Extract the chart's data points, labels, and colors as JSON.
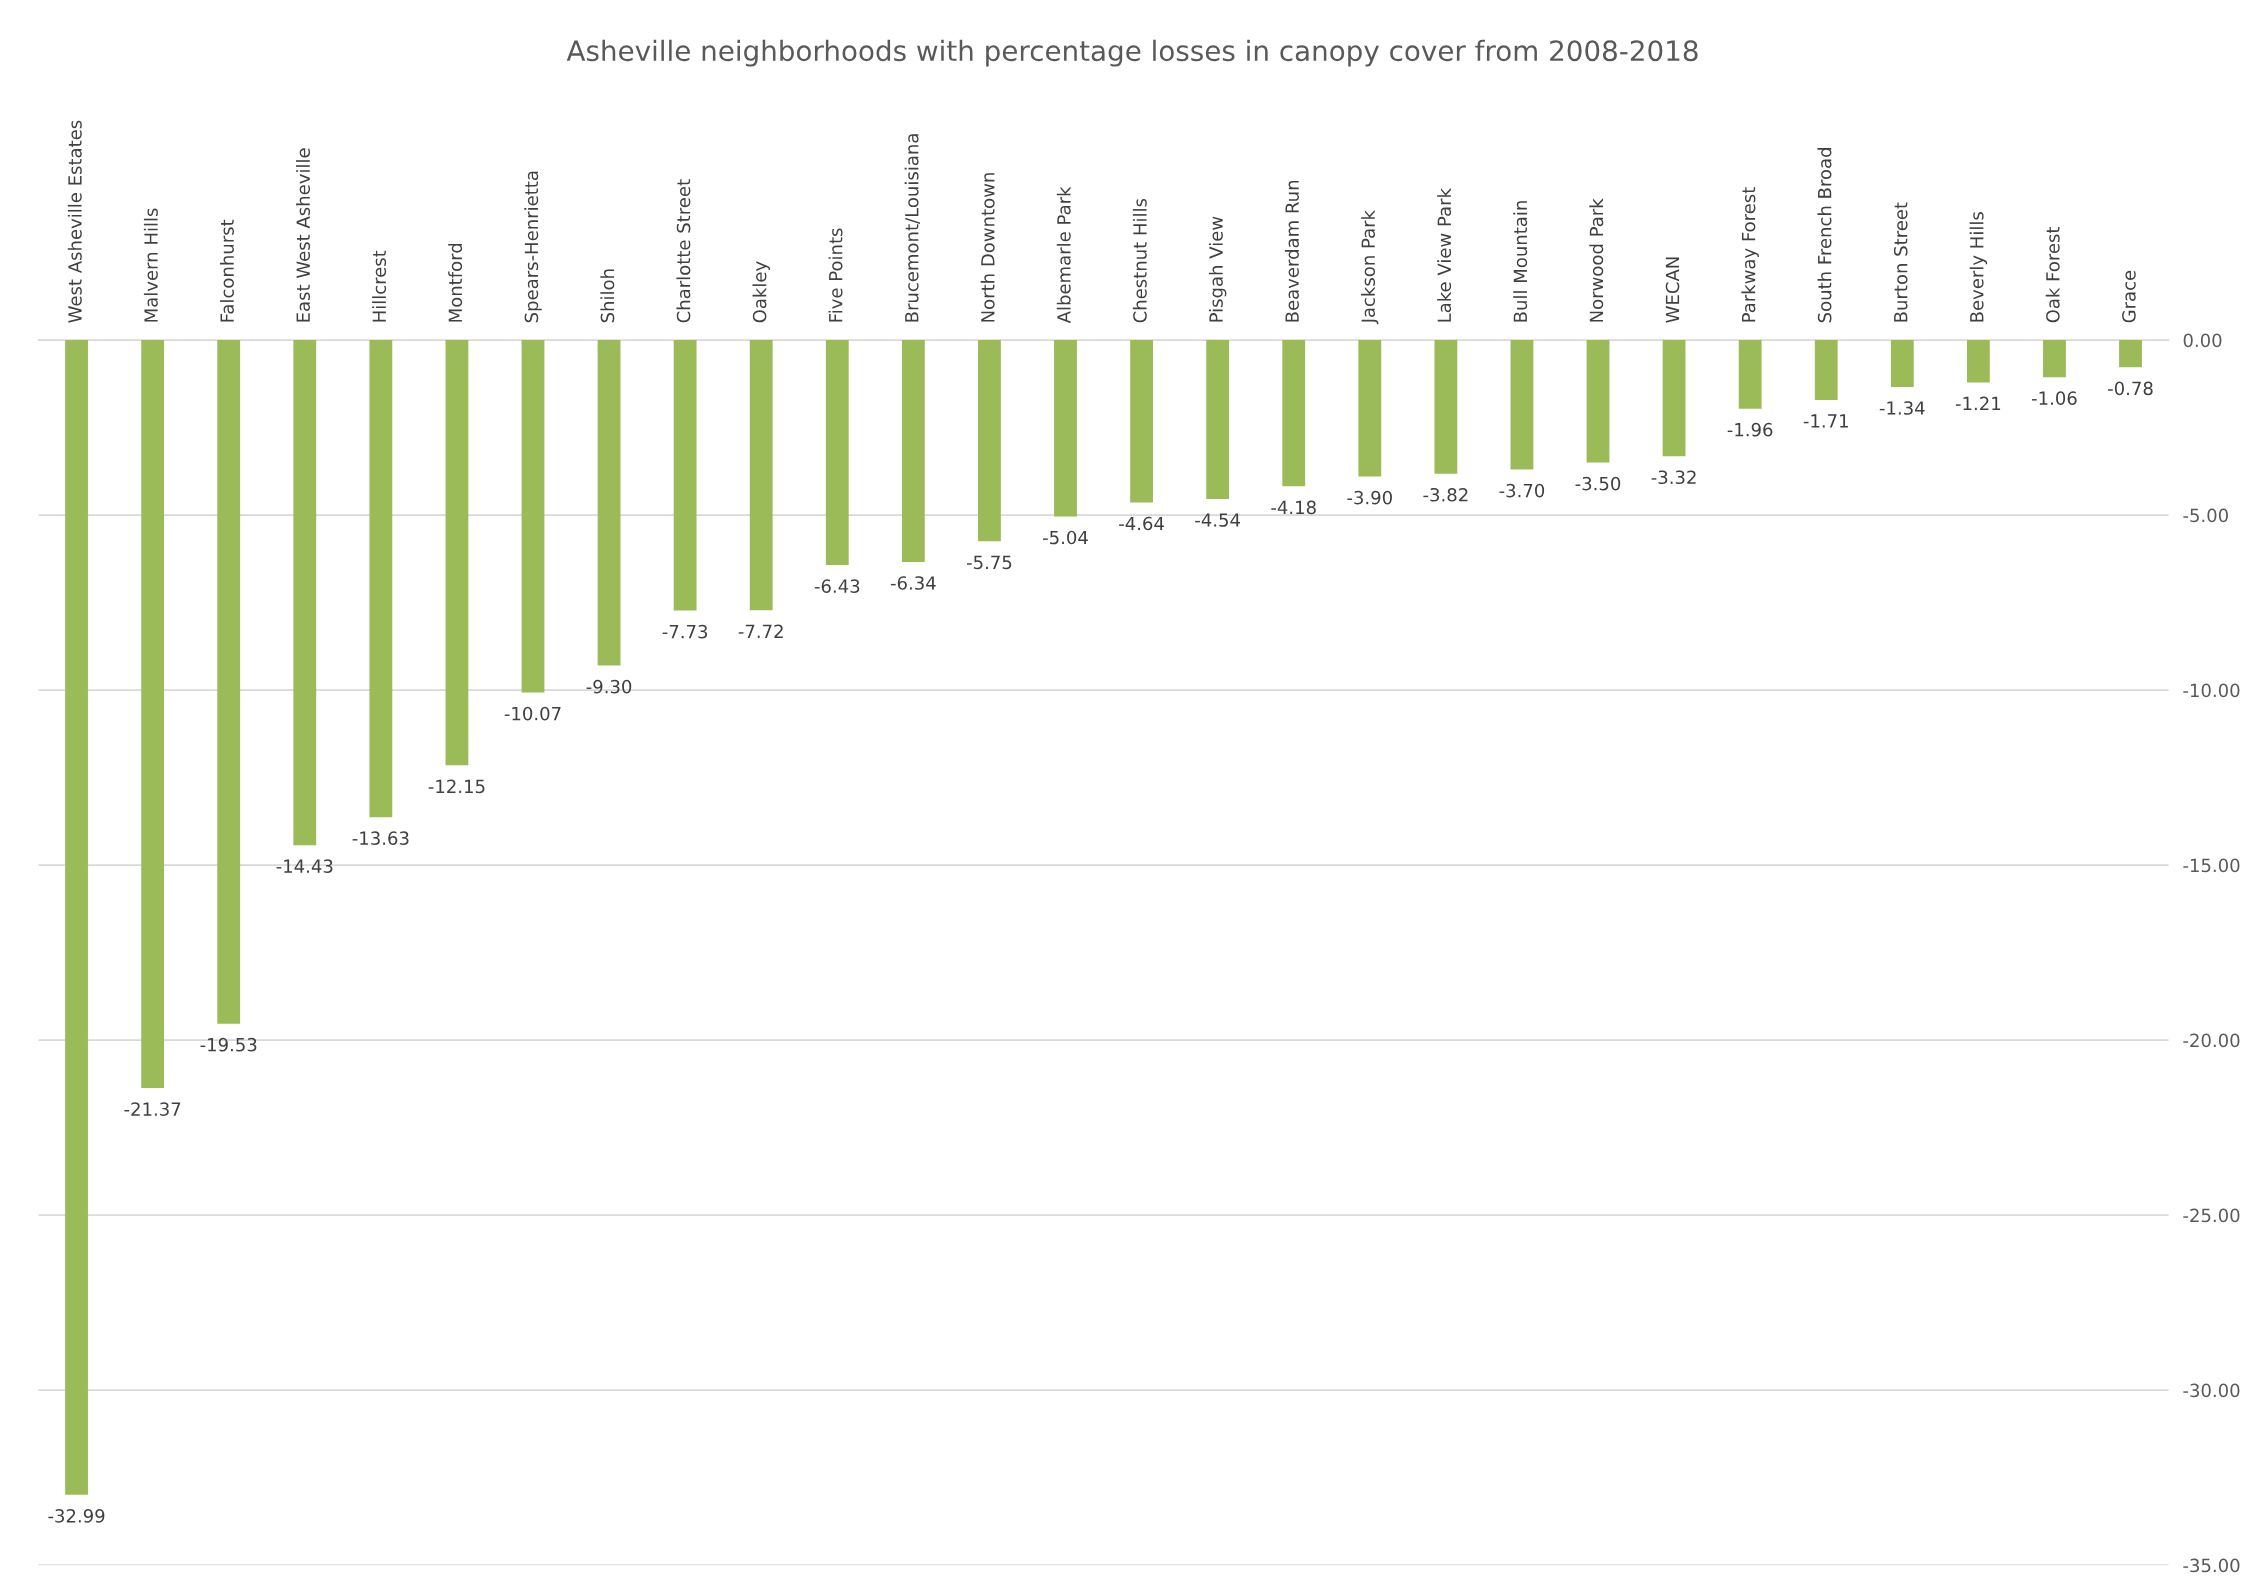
{
  "chart_data": {
    "type": "bar",
    "title": "Asheville neighborhoods with percentage losses in canopy cover from 2008-2018",
    "categories": [
      "West Asheville Estates",
      "Malvern Hills",
      "Falconhurst",
      "East West Asheville",
      "Hillcrest",
      "Montford",
      "Spears-Henrietta",
      "Shiloh",
      "Charlotte Street",
      "Oakley",
      "Five Points",
      "Brucemont/Louisiana",
      "North Downtown",
      "Albemarle Park",
      "Chestnut Hills",
      "Pisgah View",
      "Beaverdam Run",
      "Jackson Park",
      "Lake View Park",
      "Bull Mountain",
      "Norwood Park",
      "WECAN",
      "Parkway Forest",
      "South French Broad",
      "Burton Street",
      "Beverly Hills",
      "Oak Forest",
      "Grace"
    ],
    "values": [
      -32.99,
      -21.37,
      -19.53,
      -14.43,
      -13.63,
      -12.15,
      -10.07,
      -9.3,
      -7.73,
      -7.72,
      -6.43,
      -6.34,
      -5.75,
      -5.04,
      -4.64,
      -4.54,
      -4.18,
      -3.9,
      -3.82,
      -3.7,
      -3.5,
      -3.32,
      -1.96,
      -1.71,
      -1.34,
      -1.21,
      -1.06,
      -0.78
    ],
    "value_labels": [
      "-32.99",
      "-21.37",
      "-19.53",
      "-14.43",
      "-13.63",
      "-12.15",
      "-10.07",
      "-9.30",
      "-7.73",
      "-7.72",
      "-6.43",
      "-6.34",
      "-5.75",
      "-5.04",
      "-4.64",
      "-4.54",
      "-4.18",
      "-3.90",
      "-3.82",
      "-3.70",
      "-3.50",
      "-3.32",
      "-1.96",
      "-1.71",
      "-1.34",
      "-1.21",
      "-1.06",
      "-0.78"
    ],
    "color": "#9bbb59",
    "ylim": [
      -35,
      0
    ],
    "yticks": [
      {
        "value": 0,
        "label": "0.00"
      },
      {
        "value": -5,
        "label": "-5.00"
      },
      {
        "value": -10,
        "label": "-10.00"
      },
      {
        "value": -15,
        "label": "-15.00"
      },
      {
        "value": -20,
        "label": "-20.00"
      },
      {
        "value": -25,
        "label": "-25.00"
      },
      {
        "value": -30,
        "label": "-30.00"
      },
      {
        "value": -35,
        "label": "-35.00"
      }
    ],
    "grid": "y",
    "legend": false
  }
}
